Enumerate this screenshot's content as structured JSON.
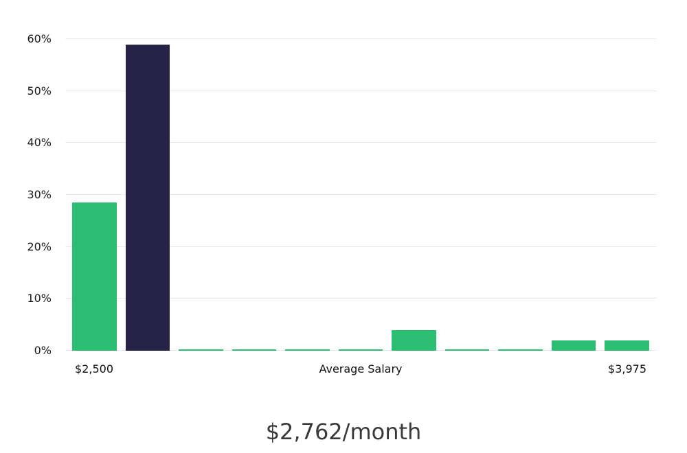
{
  "chart_data": {
    "type": "bar",
    "title": "$2,762/month",
    "ylim": [
      0,
      60
    ],
    "yticks": [
      0,
      10,
      20,
      30,
      40,
      50,
      60
    ],
    "ytick_suffix": "%",
    "grid": true,
    "legend": "none",
    "values": [
      28.6,
      59,
      0.3,
      0.3,
      0.3,
      0.3,
      4,
      0.3,
      0.3,
      2,
      2
    ],
    "bar_colors": [
      "#2bbd72",
      "#262347",
      "#2bbd72",
      "#2bbd72",
      "#2bbd72",
      "#2bbd72",
      "#2bbd72",
      "#2bbd72",
      "#2bbd72",
      "#2bbd72",
      "#2bbd72"
    ],
    "x_axis": {
      "left_label": "$2,500",
      "center_label": "Average Salary",
      "right_label": "$3,975"
    }
  },
  "colors": {
    "bar_green": "#2bbd72",
    "bar_dark": "#262347",
    "gridline": "#e7e7e7",
    "tick_text": "#1a1a1a",
    "title_text": "#3a3a3a",
    "background": "#ffffff"
  }
}
